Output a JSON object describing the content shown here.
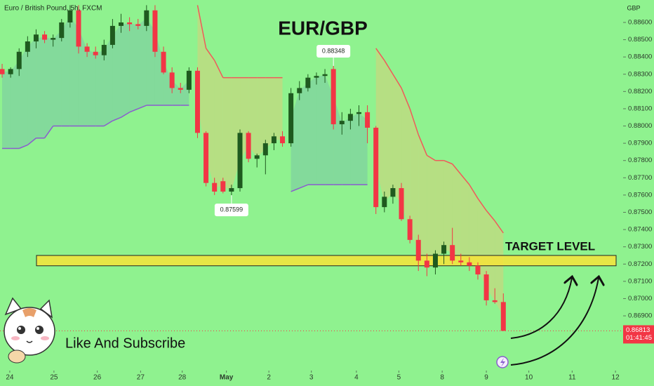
{
  "chart_data": {
    "type": "candlestick",
    "title": "EUR/GBP",
    "subtitle": "Euro / British Pound, 5h, FXCM",
    "y_axis_label": "GBP",
    "open": [
      0.8833,
      0.883,
      0.8833,
      0.8843,
      0.8849,
      0.8853,
      0.885,
      0.8851,
      0.886,
      0.8867,
      0.8846,
      0.8843,
      0.8841,
      0.8847,
      0.8858,
      0.886,
      0.8859,
      0.8858,
      0.8867,
      0.8843,
      0.8831,
      0.8822,
      0.8821,
      0.8832,
      0.8796,
      0.8767,
      0.8768,
      0.8762,
      0.8764,
      0.8796,
      0.8781,
      0.8783,
      0.879,
      0.8794,
      0.879,
      0.8819,
      0.8822,
      0.8828,
      0.8829,
      0.8833,
      0.8801,
      0.8803,
      0.8807,
      0.8808,
      0.8799,
      0.8753,
      0.8759,
      0.8764,
      0.8746,
      0.8734,
      0.8722,
      0.8718,
      0.8726,
      0.8731,
      0.8722,
      0.8721,
      0.8719,
      0.8714,
      0.8699,
      0.8698
    ],
    "high": [
      0.8836,
      0.8834,
      0.8845,
      0.8852,
      0.8856,
      0.8855,
      0.8853,
      0.8862,
      0.887,
      0.887,
      0.8848,
      0.8846,
      0.885,
      0.8862,
      0.8865,
      0.8863,
      0.8862,
      0.887,
      0.887,
      0.8846,
      0.8834,
      0.8825,
      0.8834,
      0.8834,
      0.8797,
      0.877,
      0.877,
      0.8766,
      0.8798,
      0.8797,
      0.8784,
      0.8792,
      0.8796,
      0.8797,
      0.8822,
      0.8826,
      0.883,
      0.8831,
      0.8833,
      0.88348,
      0.8808,
      0.881,
      0.8812,
      0.8812,
      0.88,
      0.8762,
      0.8766,
      0.8767,
      0.8748,
      0.8737,
      0.8726,
      0.8728,
      0.8733,
      0.8741,
      0.8726,
      0.8724,
      0.8721,
      0.8716,
      0.8706,
      0.8703
    ],
    "low": [
      0.8828,
      0.8828,
      0.8829,
      0.884,
      0.8845,
      0.8848,
      0.8846,
      0.8849,
      0.8857,
      0.8842,
      0.884,
      0.8839,
      0.8838,
      0.8845,
      0.8854,
      0.8855,
      0.8856,
      0.8855,
      0.884,
      0.883,
      0.8819,
      0.8819,
      0.8819,
      0.8793,
      0.8765,
      0.876,
      0.8761,
      0.87599,
      0.8762,
      0.8779,
      0.8776,
      0.8772,
      0.8786,
      0.8788,
      0.8788,
      0.8815,
      0.882,
      0.8824,
      0.8825,
      0.8798,
      0.8795,
      0.8798,
      0.88,
      0.879,
      0.8749,
      0.875,
      0.8755,
      0.8745,
      0.8732,
      0.8716,
      0.8713,
      0.8714,
      0.872,
      0.872,
      0.8719,
      0.8716,
      0.8711,
      0.8696,
      0.8697,
      0.86813
    ],
    "close": [
      0.883,
      0.8833,
      0.8843,
      0.8849,
      0.8853,
      0.885,
      0.8851,
      0.886,
      0.8867,
      0.8846,
      0.8843,
      0.8841,
      0.8847,
      0.8858,
      0.886,
      0.8859,
      0.8858,
      0.8867,
      0.8843,
      0.8831,
      0.8822,
      0.8821,
      0.8832,
      0.8796,
      0.8767,
      0.8762,
      0.8762,
      0.8764,
      0.8796,
      0.8781,
      0.8783,
      0.879,
      0.8794,
      0.879,
      0.8819,
      0.8822,
      0.8828,
      0.8829,
      0.883,
      0.8801,
      0.8803,
      0.8807,
      0.8808,
      0.8799,
      0.8753,
      0.8759,
      0.8764,
      0.8746,
      0.8734,
      0.8722,
      0.8718,
      0.8726,
      0.8731,
      0.8722,
      0.8721,
      0.8719,
      0.8714,
      0.8699,
      0.8698,
      0.86813
    ],
    "up_color": "#1f5a1f",
    "down_color": "#f23645",
    "supertrend": {
      "values": [
        0.8787,
        0.8787,
        0.8787,
        0.8789,
        0.8793,
        0.8793,
        0.88,
        0.88,
        0.88,
        0.88,
        0.88,
        0.88,
        0.88,
        0.8803,
        0.8805,
        0.8808,
        0.881,
        0.8812,
        0.8812,
        0.8812,
        0.8812,
        0.8812,
        0.8812,
        0.887,
        0.8845,
        0.8838,
        0.8828,
        0.8828,
        0.8828,
        0.8828,
        0.8828,
        0.8828,
        0.8828,
        0.8828,
        0.8762,
        0.8764,
        0.8766,
        0.8766,
        0.8766,
        0.8766,
        0.8766,
        0.8766,
        0.8766,
        0.8766,
        0.8845,
        0.8838,
        0.883,
        0.8822,
        0.881,
        0.8795,
        0.8783,
        0.878,
        0.878,
        0.8778,
        0.8772,
        0.8766,
        0.8758,
        0.8751,
        0.8745,
        0.8738
      ],
      "up_color": "#8a5ccf",
      "down_color": "#f05a5a"
    },
    "high_label": 0.88348,
    "low_label": 0.87599,
    "target_zone": {
      "low": 0.8719,
      "high": 0.8725,
      "label": "TARGET LEVEL",
      "color": "#f7e43a"
    },
    "last_price": {
      "value": 0.86813,
      "countdown": "01:41:45"
    },
    "note": "Like And Subscribe",
    "xlim": [
      -0.25,
      73.1
    ],
    "xticks": [
      {
        "value": 0.9,
        "label": "24"
      },
      {
        "value": 6.1,
        "label": "25"
      },
      {
        "value": 11.2,
        "label": "26"
      },
      {
        "value": 16.3,
        "label": "27"
      },
      {
        "value": 21.2,
        "label": "28"
      },
      {
        "value": 26.4,
        "label": "May"
      },
      {
        "value": 31.4,
        "label": "2"
      },
      {
        "value": 36.4,
        "label": "3"
      },
      {
        "value": 41.7,
        "label": "4"
      },
      {
        "value": 46.7,
        "label": "5"
      },
      {
        "value": 51.8,
        "label": "8"
      },
      {
        "value": 57,
        "label": "9"
      },
      {
        "value": 62,
        "label": "10"
      },
      {
        "value": 67.1,
        "label": "11"
      },
      {
        "value": 72.2,
        "label": "12"
      }
    ],
    "ylim": [
      0.86583,
      0.8873
    ],
    "yticks": [
      {
        "value": 0.869,
        "label": "0.86900"
      },
      {
        "value": 0.87,
        "label": "0.87000"
      },
      {
        "value": 0.871,
        "label": "0.87100"
      },
      {
        "value": 0.872,
        "label": "0.87200"
      },
      {
        "value": 0.873,
        "label": "0.87300"
      },
      {
        "value": 0.874,
        "label": "0.87400"
      },
      {
        "value": 0.875,
        "label": "0.87500"
      },
      {
        "value": 0.876,
        "label": "0.87600"
      },
      {
        "value": 0.877,
        "label": "0.87700"
      },
      {
        "value": 0.878,
        "label": "0.87800"
      },
      {
        "value": 0.879,
        "label": "0.87900"
      },
      {
        "value": 0.88,
        "label": "0.88000"
      },
      {
        "value": 0.881,
        "label": "0.88100"
      },
      {
        "value": 0.882,
        "label": "0.88200"
      },
      {
        "value": 0.883,
        "label": "0.88300"
      },
      {
        "value": 0.884,
        "label": "0.88400"
      },
      {
        "value": 0.885,
        "label": "0.88500"
      },
      {
        "value": 0.886,
        "label": "0.88600"
      }
    ],
    "grid": false
  }
}
